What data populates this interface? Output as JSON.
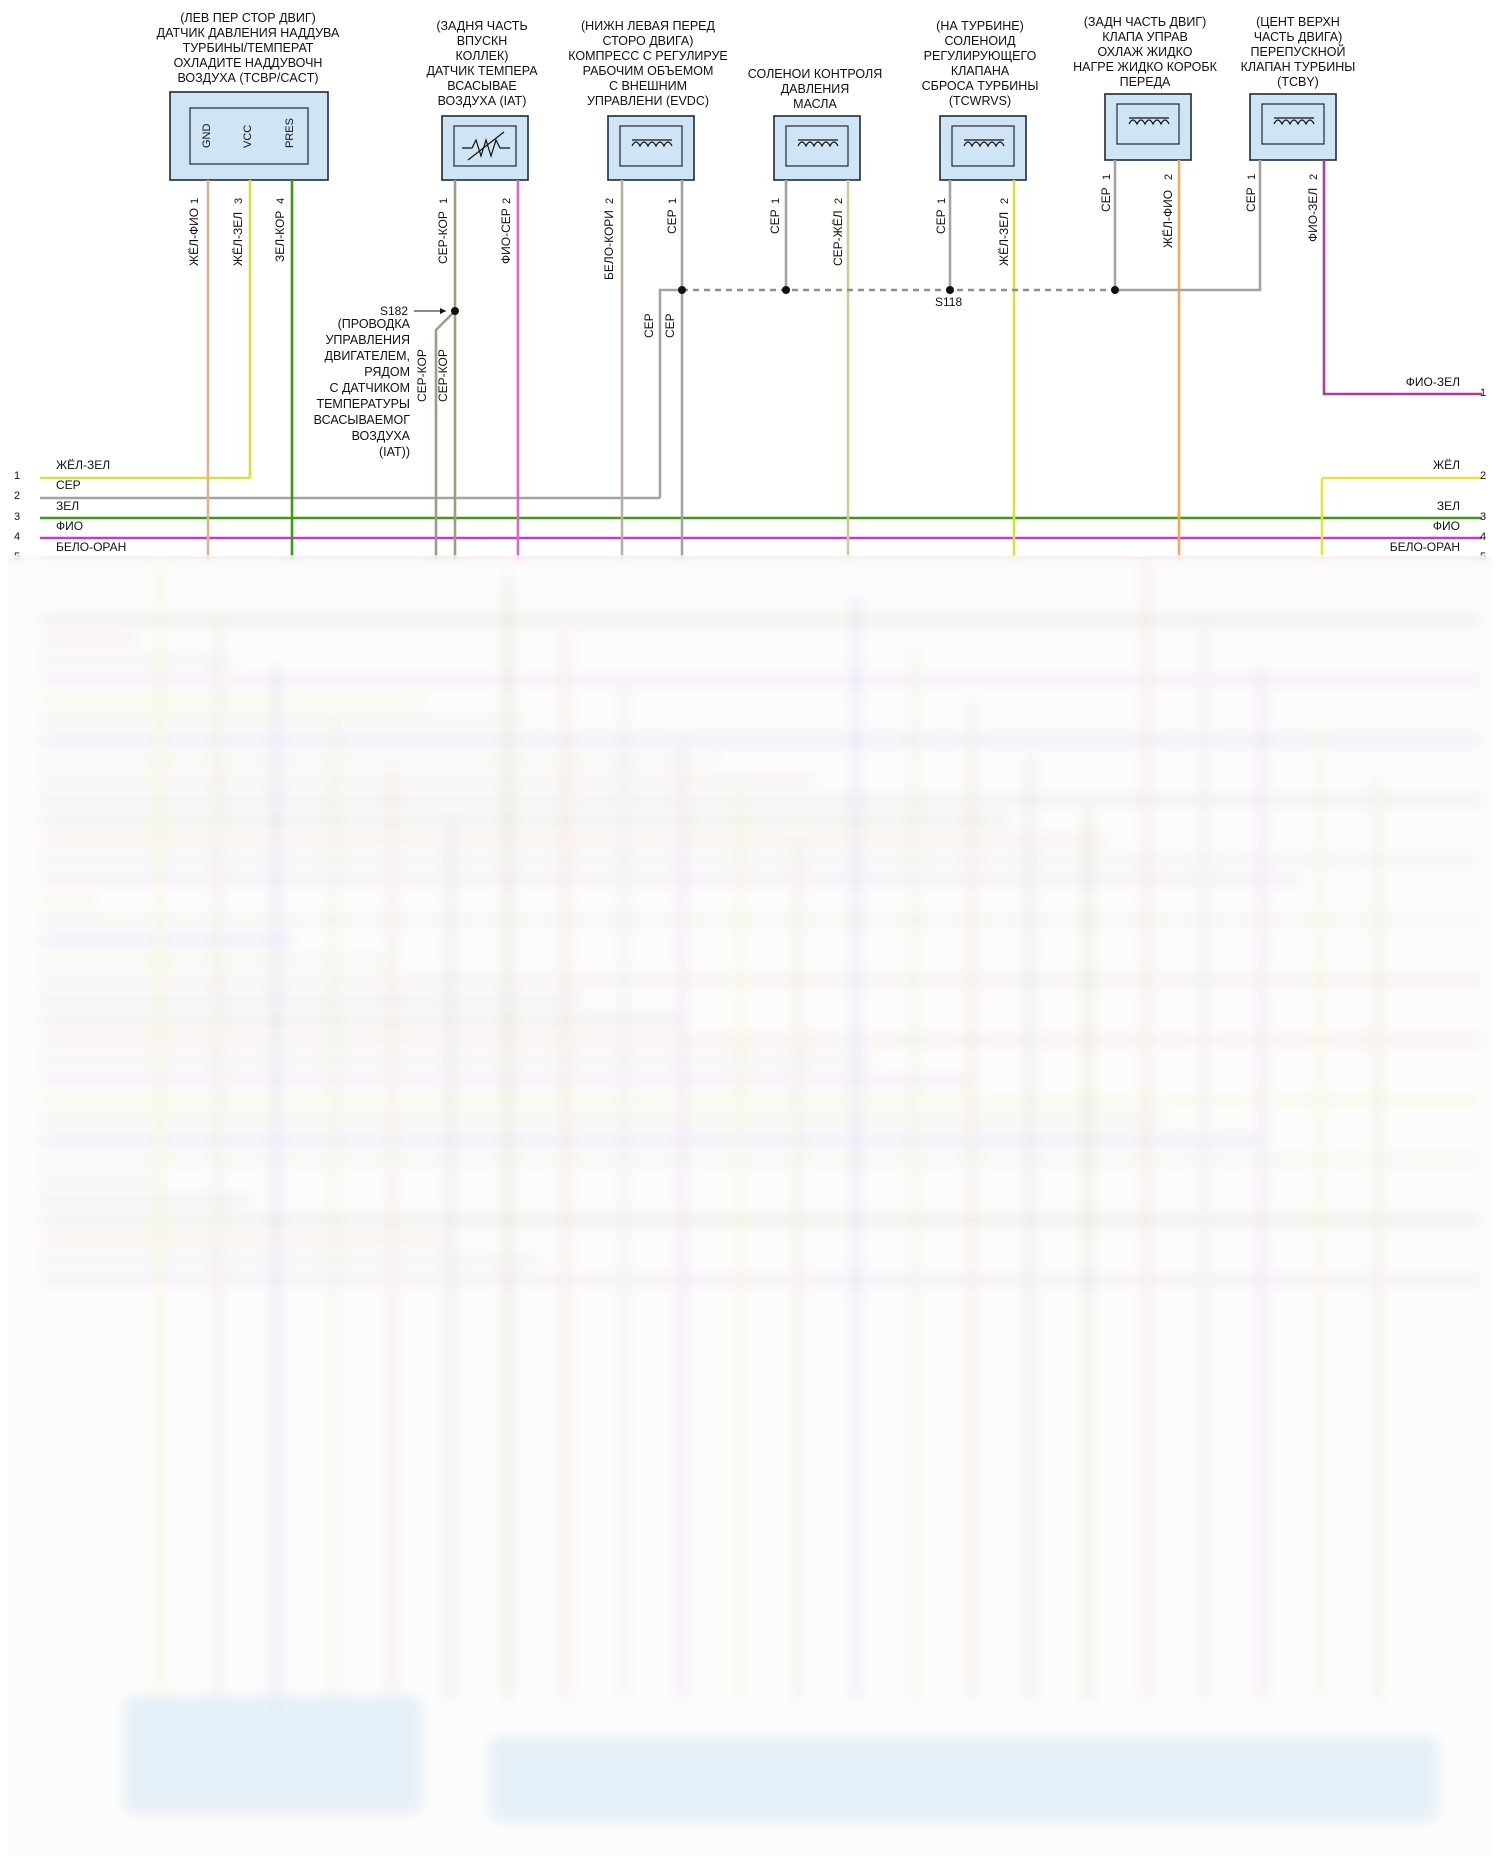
{
  "components": {
    "tcbp": {
      "caption": [
        "(ЛЕВ ПЕР СТОР ДВИГ)",
        "ДАТЧИК ДАВЛЕНИЯ НАДДУВА",
        "ТУРБИНЫ/ТЕМПЕРАТ",
        "ОХЛАДИТЕ НАДДУВОЧН",
        "ВОЗДУХА (TCBP/CACT)"
      ],
      "terminals": [
        "GND",
        "VCC",
        "PRES"
      ],
      "pins": [
        "1",
        "3",
        "4"
      ],
      "wires": [
        "ЖЁЛ-ФИО",
        "ЖЁЛ-ЗЕЛ",
        "ЗЕЛ-КОР"
      ]
    },
    "iat": {
      "caption": [
        "(ЗАДНЯ ЧАСТЬ",
        "ВПУСКН",
        "КОЛЛЕК)",
        "ДАТЧИК ТЕМПЕРА",
        "ВСАСЫВАЕ",
        "ВОЗДУХА (IAT)"
      ],
      "pins": [
        "1",
        "2"
      ],
      "wires": [
        "СЕР-КОР",
        "ФИО-СЕР"
      ]
    },
    "evdc": {
      "caption": [
        "(НИЖН ЛЕВАЯ ПЕРЕД",
        "СТОРО ДВИГА)",
        "КОМПРЕСС С РЕГУЛИРУЕ",
        "РАБОЧИМ ОБЪЕМОМ",
        "С ВНЕШНИМ",
        "УПРАВЛЕНИ (EVDC)"
      ],
      "pins": [
        "2",
        "1"
      ],
      "wires": [
        "БЕЛО-КОРИ",
        "СЕР"
      ]
    },
    "oil": {
      "caption": [
        "СОЛЕНОИ КОНТРОЛЯ",
        "ДАВЛЕНИЯ",
        "МАСЛА"
      ],
      "pins": [
        "1",
        "2"
      ],
      "wires": [
        "СЕР",
        "СЕР-ЖЁЛ"
      ]
    },
    "tcwrvs": {
      "caption": [
        "(НА ТУРБИНЕ)",
        "СОЛЕНОИД",
        "РЕГУЛИРУЮЩЕГО",
        "КЛАПАНА",
        "СБРОСА ТУРБИНЫ",
        "(TCWRVS)"
      ],
      "pins": [
        "1",
        "2"
      ],
      "wires": [
        "СЕР",
        "ЖЁЛ-ЗЕЛ"
      ]
    },
    "coolant": {
      "caption": [
        "(ЗАДН ЧАСТЬ ДВИГ)",
        "КЛАПА УПРАВ",
        "ОХЛАЖ ЖИДКО",
        "НАГРЕ ЖИДКО КОРОБК",
        "ПЕРЕДА"
      ],
      "pins": [
        "1",
        "2"
      ],
      "wires": [
        "СЕР",
        "ЖЁЛ-ФИО"
      ]
    },
    "tcby": {
      "caption": [
        "(ЦЕНТ ВЕРХН",
        "ЧАСТЬ ДВИГА)",
        "ПЕРЕПУСКНОЙ",
        "КЛАПАН ТУРБИНЫ",
        "(TCBY)"
      ],
      "pins": [
        "1",
        "2"
      ],
      "wires": [
        "СЕР",
        "ФИО-ЗЕЛ"
      ]
    }
  },
  "splices": {
    "s182": {
      "label": "S182",
      "caption": [
        "(ПРОВОДКА",
        "УПРАВЛЕНИЯ",
        "ДВИГАТЕЛЕМ,",
        "РЯДОМ",
        "С ДАТЧИКОМ",
        "ТЕМПЕРАТУРЫ",
        "ВСАСЫВАЕМОГ",
        "ВОЗДУХА",
        "(IAT))"
      ],
      "wires": [
        "СЕР-КОР",
        "СЕР-КОР"
      ]
    },
    "s118": {
      "label": "S118",
      "wires": [
        "СЕР",
        "СЕР"
      ]
    }
  },
  "right_connector": {
    "pin": "1",
    "wire": "ФИО-ЗЕЛ"
  },
  "bus_left": [
    {
      "num": "1",
      "wire": "ЖЁЛ-ЗЕЛ"
    },
    {
      "num": "2",
      "wire": "СЕР"
    },
    {
      "num": "3",
      "wire": "ЗЕЛ"
    },
    {
      "num": "4",
      "wire": "ФИО"
    },
    {
      "num": "5",
      "wire": "БЕЛО-ОРАН"
    }
  ],
  "bus_right": [
    {
      "num": "2",
      "wire": "ЖЁЛ"
    },
    {
      "num": "3",
      "wire": "ЗЕЛ"
    },
    {
      "num": "4",
      "wire": "ФИО"
    },
    {
      "num": "5",
      "wire": "БЕЛО-ОРАН"
    }
  ],
  "colors": {
    "ЖЁЛ-ЗЕЛ": "#d6e23c",
    "СЕР": "#a3a3a3",
    "ЗЕЛ": "#3d9a13",
    "ФИО": "#c63ac6",
    "ЖЁЛ": "#e8e23a",
    "ЖЁЛ-ФИО": "#e3b087",
    "СЕР-КОР": "#a09a86",
    "ФИО-СЕР": "#d266d6",
    "БЕЛО-КОРИ": "#b9b2a0",
    "СЕР-ЖЁЛ": "#cfcc92",
    "ФИО-ЗЕЛ": "#b03c9a",
    "ЖЁЛ-ФИО_alt": "#e8a070",
    "dashed": "#8f8f8f",
    "box_fill": "#cfe5f5"
  }
}
